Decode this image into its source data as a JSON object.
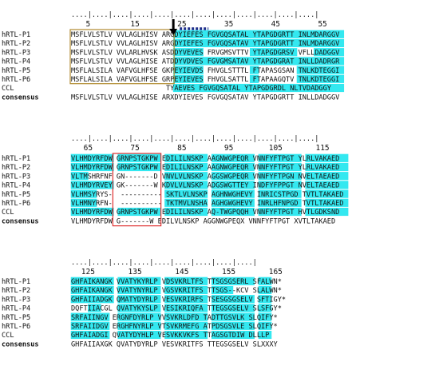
{
  "alignment": {
    "colors": {
      "highlight": "#33e8f0",
      "text": "#111111",
      "sp_box": "#b08a2e",
      "insertion_box": "#e03030",
      "arrow": "#000000",
      "dotted_bar": "#1f2d8a"
    },
    "blocks": [
      {
        "ruler": "....|....|....|....|....|....|....|....|....|....|....|....|",
        "ticks": [
          "5",
          "15",
          "25",
          "35",
          "45",
          "55"
        ],
        "rows": [
          {
            "name": "hRTL-P1",
            "seq": "MSFLVLSTLV VVLAGLHISV ARGDYIEFES FGVGQSATAL YTAPGDGRTT INLMDARGGV",
            "hl": "           00000000000000000000000000000000"
          },
          {
            "name": "hRTL-P2",
            "seq": "MSFLVLSTLV VVLAGLHISV ARGDYIEFES FGVGQSATAV YTAPGDGRTT INLMDARGGV",
            "hl": ""
          },
          {
            "name": "hRTL-P3",
            "seq": "MSFLVLSTLV VVLARLHVSK ASDDYVEVES FRVGMSVTTV YTAPGDGRSV VFLLDADGGV",
            "hl": ""
          },
          {
            "name": "hRTL-P4",
            "seq": "MSFLVLSTLV VVLAGLHISE ATDDYVDVES FGVGMSATAV YTAPGDGRAT INLLDADRGR",
            "hl": ""
          },
          {
            "name": "hRTL-P5",
            "seq": "MSFLALSILA VAFVGLHFSE GKPEYIEVDS FHVGLSTTTL FTAPASGSAN TNLKDTEGGI",
            "hl": ""
          },
          {
            "name": "hRTL-P6",
            "seq": "MSFLALSILA VAFVGLHFSE GRPEYIEVES FHVGLSATTL FTAPAAGQTV TNLKDTEGGI",
            "hl": ""
          },
          {
            "name": "CCL",
            "seq": "                       TYAEVES FGVGQSATAL YTAPGDGRDL NLTVDADGGY",
            "hl": ""
          },
          {
            "name": "consensus",
            "seq": "MSFLVLSTLV VVLAGLHISE ARXDYIEVES FGVGQSATAV YTAPGDGRTT INLLDADGGV",
            "bold": true
          }
        ]
      },
      {
        "ruler": "....|....|....|....|....|....|....|....|....|....|....|....|",
        "ticks": [
          "65",
          "75",
          "85",
          "95",
          "105",
          "115"
        ],
        "rows": [
          {
            "name": "hRTL-P1",
            "seq": "VLHMDYRFDW GRNPSTGKPW EDILILNSKP AAGNWGPEQR VNNFYFTPGT YLRLVAKAED"
          },
          {
            "name": "hRTL-P2",
            "seq": "VLHMDYRFDW GRNPSTGKPW EDILILNSKP AAGNWGPEQR VNNFYFTPGT YLRLVAKAED"
          },
          {
            "name": "hRTL-P3",
            "seq": "VLTMSHRFNF GN-------D VNVLVLNSKP AGGSWGPEQR VNNFYFTPGN NVELTAEAED"
          },
          {
            "name": "hRTL-P4",
            "seq": "VLHMDYRVEY GK-------W KDVLVLNSKP ADGSWGTTEY INDFYFPPGT NVELTAEAED"
          },
          {
            "name": "hRTL-P5",
            "seq": "VLHMSYRYS-  ---------- SKTLVLNSKP AGHNWGHEVY INRICSTPGD TVTLTAKAED"
          },
          {
            "name": "hRTL-P6",
            "seq": "VLHMNYRFN-  ---------- TKTMVLNSHA AGHGWGHEVY INRLHFNPGD TVTLTAKAED"
          },
          {
            "name": "CCL",
            "seq": "VLHMDYRFDW GRNPSTGKPW EDILILNSKP AQ-TWGPQQH VNNFYFTPGT HVTLGDKSND"
          },
          {
            "name": "consensus",
            "seq": "VLHMDYRFDW G-------W EDILVLNSKP AGGNWGPEQX VNNFYFTPGT XVTLTAKAED",
            "bold": true
          }
        ]
      },
      {
        "ruler": "....|....|....|....|....|....|....|....|....|",
        "ticks": [
          "125",
          "135",
          "145",
          "155",
          "165"
        ],
        "rows": [
          {
            "name": "hRTL-P1",
            "seq": "GHFAIKANGK VVATYKYRLP VDSVKRLTFS TTSGSGSERL SFALWN*"
          },
          {
            "name": "hRTL-P2",
            "seq": "GHFAIKANGK VVATYNYRLP VGSVKRITFS TTSGS--KCV SLALWN*"
          },
          {
            "name": "hRTL-P3",
            "seq": "GHFAIIADGK QMATYDYRLP VESVKRIRFS TSESGSGSELV SFTIGY*"
          },
          {
            "name": "hRTL-P4",
            "seq": "DQFTIIACGL QVATYKYSLP VESIKRIQFA TTEGSGSELV SLSFGY*"
          },
          {
            "name": "hRTL-P5",
            "seq": "SRFAIINGV ERGNFDYRLP VVSVKRLDFD TADTTGSVLK SLQIFY*"
          },
          {
            "name": "hRTL-P6",
            "seq": "SRFAIIDGV ERGHFNYRLP VTSVKRMEFG ATPDSGSVLE SLQIFY*"
          },
          {
            "name": "CCL",
            "seq": "GHFAIADGI QVATYDYHLP VESVKKVKFS TTAGSGTDIW DLLLP"
          },
          {
            "name": "consensus",
            "seq": "GHFAIIAXGK QVATYDYRLP VESVKRITFS TTEGSGSELV SLXXXY",
            "bold": true
          }
        ]
      }
    ]
  }
}
